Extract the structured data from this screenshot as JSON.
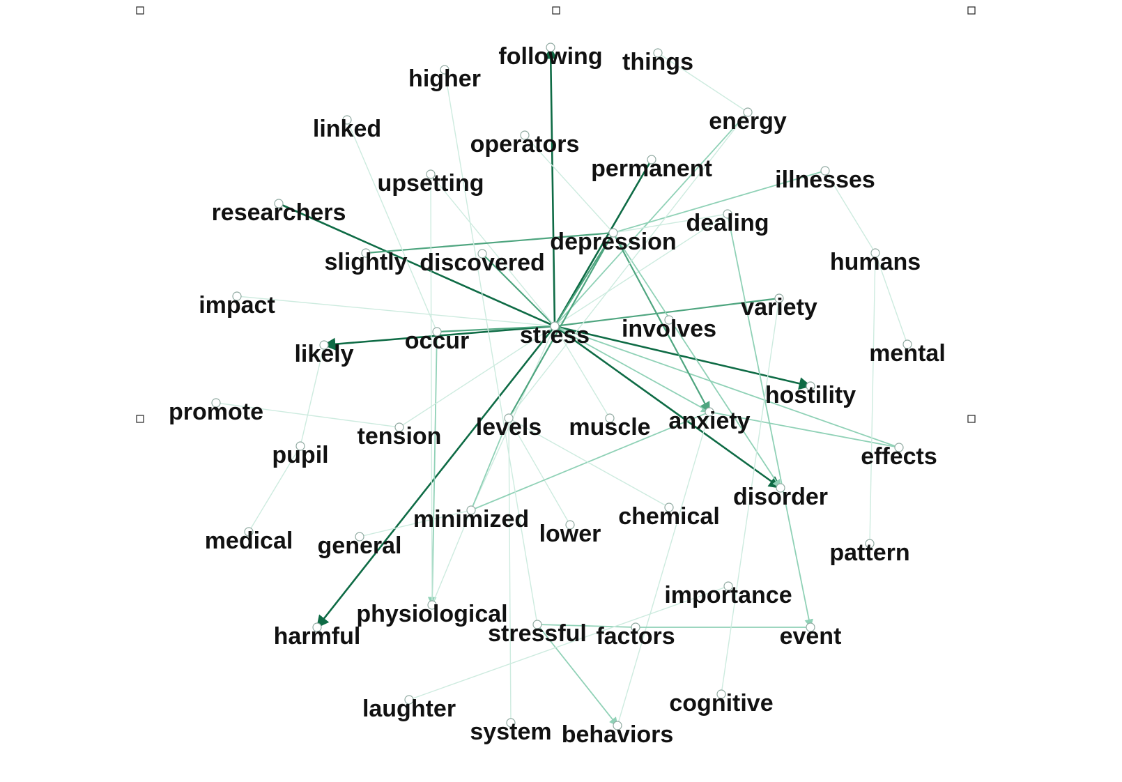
{
  "graph": {
    "colors": {
      "strong": "#0e6b45",
      "medium": "#4ea57f",
      "light": "#8fd1b6",
      "faint": "#cdebdf",
      "text": "#111111"
    },
    "nodes": [
      {
        "id": "following",
        "label": "following"
      },
      {
        "id": "things",
        "label": "things"
      },
      {
        "id": "higher",
        "label": "higher"
      },
      {
        "id": "energy",
        "label": "energy"
      },
      {
        "id": "linked",
        "label": "linked"
      },
      {
        "id": "operators",
        "label": "operators"
      },
      {
        "id": "permanent",
        "label": "permanent"
      },
      {
        "id": "illnesses",
        "label": "illnesses"
      },
      {
        "id": "upsetting",
        "label": "upsetting"
      },
      {
        "id": "researchers",
        "label": "researchers"
      },
      {
        "id": "dealing",
        "label": "dealing"
      },
      {
        "id": "depression",
        "label": "depression"
      },
      {
        "id": "slightly",
        "label": "slightly"
      },
      {
        "id": "discovered",
        "label": "discovered"
      },
      {
        "id": "humans",
        "label": "humans"
      },
      {
        "id": "impact",
        "label": "impact"
      },
      {
        "id": "variety",
        "label": "variety"
      },
      {
        "id": "involves",
        "label": "involves"
      },
      {
        "id": "occur",
        "label": "occur"
      },
      {
        "id": "stress",
        "label": "stress"
      },
      {
        "id": "likely",
        "label": "likely"
      },
      {
        "id": "mental",
        "label": "mental"
      },
      {
        "id": "hostility",
        "label": "hostility"
      },
      {
        "id": "promote",
        "label": "promote"
      },
      {
        "id": "levels",
        "label": "levels"
      },
      {
        "id": "muscle",
        "label": "muscle"
      },
      {
        "id": "anxiety",
        "label": "anxiety"
      },
      {
        "id": "tension",
        "label": "tension"
      },
      {
        "id": "pupil",
        "label": "pupil"
      },
      {
        "id": "effects",
        "label": "effects"
      },
      {
        "id": "disorder",
        "label": "disorder"
      },
      {
        "id": "minimized",
        "label": "minimized"
      },
      {
        "id": "chemical",
        "label": "chemical"
      },
      {
        "id": "lower",
        "label": "lower"
      },
      {
        "id": "medical",
        "label": "medical"
      },
      {
        "id": "general",
        "label": "general"
      },
      {
        "id": "pattern",
        "label": "pattern"
      },
      {
        "id": "importance",
        "label": "importance"
      },
      {
        "id": "physiological",
        "label": "physiological"
      },
      {
        "id": "harmful",
        "label": "harmful"
      },
      {
        "id": "stressful",
        "label": "stressful"
      },
      {
        "id": "factors",
        "label": "factors"
      },
      {
        "id": "event",
        "label": "event"
      },
      {
        "id": "cognitive",
        "label": "cognitive"
      },
      {
        "id": "laughter",
        "label": "laughter"
      },
      {
        "id": "system",
        "label": "system"
      },
      {
        "id": "behaviors",
        "label": "behaviors"
      }
    ],
    "edges": [
      {
        "from": "stress",
        "to": "following",
        "weight": "strong",
        "arrow": true
      },
      {
        "from": "stress",
        "to": "researchers",
        "weight": "strong",
        "arrow": false
      },
      {
        "from": "stress",
        "to": "permanent",
        "weight": "strong",
        "arrow": false
      },
      {
        "from": "stress",
        "to": "harmful",
        "weight": "strong",
        "arrow": true
      },
      {
        "from": "stress",
        "to": "likely",
        "weight": "strong",
        "arrow": true
      },
      {
        "from": "stress",
        "to": "hostility",
        "weight": "strong",
        "arrow": true
      },
      {
        "from": "stress",
        "to": "disorder",
        "weight": "strong",
        "arrow": true
      },
      {
        "from": "stress",
        "to": "discovered",
        "weight": "medium",
        "arrow": false
      },
      {
        "from": "stress",
        "to": "variety",
        "weight": "medium",
        "arrow": false
      },
      {
        "from": "stress",
        "to": "effects",
        "weight": "light",
        "arrow": false
      },
      {
        "from": "stress",
        "to": "anxiety",
        "weight": "light",
        "arrow": true
      },
      {
        "from": "stress",
        "to": "depression",
        "weight": "medium",
        "arrow": false
      },
      {
        "from": "stress",
        "to": "energy",
        "weight": "light",
        "arrow": false
      },
      {
        "from": "stress",
        "to": "dealing",
        "weight": "faint",
        "arrow": false
      },
      {
        "from": "stress",
        "to": "upsetting",
        "weight": "faint",
        "arrow": false
      },
      {
        "from": "stress",
        "to": "impact",
        "weight": "faint",
        "arrow": false
      },
      {
        "from": "stress",
        "to": "muscle",
        "weight": "faint",
        "arrow": false
      },
      {
        "from": "stress",
        "to": "minimized",
        "weight": "faint",
        "arrow": false
      },
      {
        "from": "slightly",
        "to": "depression",
        "weight": "medium",
        "arrow": false
      },
      {
        "from": "depression",
        "to": "levels",
        "weight": "medium",
        "arrow": false
      },
      {
        "from": "depression",
        "to": "anxiety",
        "weight": "medium",
        "arrow": true
      },
      {
        "from": "depression",
        "to": "disorder",
        "weight": "light",
        "arrow": true
      },
      {
        "from": "depression",
        "to": "illnesses",
        "weight": "light",
        "arrow": false
      },
      {
        "from": "depression",
        "to": "operators",
        "weight": "faint",
        "arrow": false
      },
      {
        "from": "depression",
        "to": "dealing",
        "weight": "faint",
        "arrow": false
      },
      {
        "from": "levels",
        "to": "minimized",
        "weight": "light",
        "arrow": false
      },
      {
        "from": "levels",
        "to": "lower",
        "weight": "faint",
        "arrow": false
      },
      {
        "from": "levels",
        "to": "system",
        "weight": "faint",
        "arrow": false
      },
      {
        "from": "levels",
        "to": "energy",
        "weight": "faint",
        "arrow": false
      },
      {
        "from": "occur",
        "to": "physiological",
        "weight": "light",
        "arrow": true
      },
      {
        "from": "occur",
        "to": "stress",
        "weight": "medium",
        "arrow": false
      },
      {
        "from": "anxiety",
        "to": "minimized",
        "weight": "light",
        "arrow": false
      },
      {
        "from": "anxiety",
        "to": "effects",
        "weight": "light",
        "arrow": false
      },
      {
        "from": "anxiety",
        "to": "behaviors",
        "weight": "faint",
        "arrow": false
      },
      {
        "from": "dealing",
        "to": "event",
        "weight": "light",
        "arrow": true
      },
      {
        "from": "stressful",
        "to": "behaviors",
        "weight": "light",
        "arrow": true
      },
      {
        "from": "factors",
        "to": "event",
        "weight": "light",
        "arrow": false
      },
      {
        "from": "stressful",
        "to": "factors",
        "weight": "light",
        "arrow": false
      },
      {
        "from": "things",
        "to": "energy",
        "weight": "faint",
        "arrow": false
      },
      {
        "from": "illnesses",
        "to": "humans",
        "weight": "faint",
        "arrow": false
      },
      {
        "from": "humans",
        "to": "mental",
        "weight": "faint",
        "arrow": false
      },
      {
        "from": "humans",
        "to": "pattern",
        "weight": "faint",
        "arrow": false
      },
      {
        "from": "likely",
        "to": "pupil",
        "weight": "faint",
        "arrow": false
      },
      {
        "from": "pupil",
        "to": "medical",
        "weight": "faint",
        "arrow": false
      },
      {
        "from": "promote",
        "to": "tension",
        "weight": "faint",
        "arrow": false
      },
      {
        "from": "tension",
        "to": "stress",
        "weight": "faint",
        "arrow": false
      },
      {
        "from": "general",
        "to": "minimized",
        "weight": "faint",
        "arrow": false
      },
      {
        "from": "minimized",
        "to": "physiological",
        "weight": "faint",
        "arrow": false
      },
      {
        "from": "higher",
        "to": "stressful",
        "weight": "faint",
        "arrow": false
      },
      {
        "from": "linked",
        "to": "occur",
        "weight": "faint",
        "arrow": false
      },
      {
        "from": "laughter",
        "to": "importance",
        "weight": "faint",
        "arrow": false
      },
      {
        "from": "cognitive",
        "to": "variety",
        "weight": "faint",
        "arrow": false
      },
      {
        "from": "chemical",
        "to": "levels",
        "weight": "faint",
        "arrow": false
      },
      {
        "from": "upsetting",
        "to": "physiological",
        "weight": "faint",
        "arrow": false
      }
    ]
  }
}
